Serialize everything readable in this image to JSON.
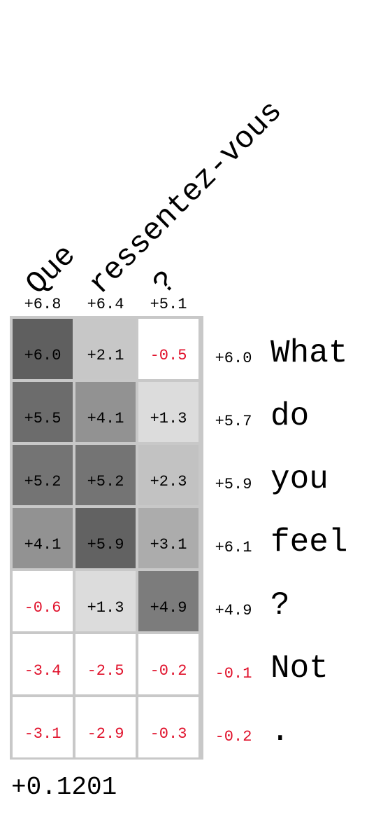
{
  "chart_data": {
    "type": "heatmap",
    "columns": [
      "Que",
      "ressentez-vous",
      "?"
    ],
    "column_totals": [
      "+6.8",
      "+6.4",
      "+5.1"
    ],
    "rows": [
      "What",
      "do",
      "you",
      "feel",
      "?",
      "Not",
      "."
    ],
    "row_totals": [
      "+6.0",
      "+5.7",
      "+5.9",
      "+6.1",
      "+4.9",
      "-0.1",
      "-0.2"
    ],
    "values": [
      [
        6.0,
        2.1,
        -0.5
      ],
      [
        5.5,
        4.1,
        1.3
      ],
      [
        5.2,
        5.2,
        2.3
      ],
      [
        4.1,
        5.9,
        3.1
      ],
      [
        -0.6,
        1.3,
        4.9
      ],
      [
        -3.4,
        -2.5,
        -0.2
      ],
      [
        -3.1,
        -2.9,
        -0.3
      ]
    ],
    "labels": [
      [
        "+6.0",
        "+2.1",
        "-0.5"
      ],
      [
        "+5.5",
        "+4.1",
        "+1.3"
      ],
      [
        "+5.2",
        "+5.2",
        "+2.3"
      ],
      [
        "+4.1",
        "+5.9",
        "+3.1"
      ],
      [
        "-0.6",
        "+1.3",
        "+4.9"
      ],
      [
        "-3.4",
        "-2.5",
        "-0.2"
      ],
      [
        "-3.1",
        "-2.9",
        "-0.3"
      ]
    ],
    "score": "+0.1201",
    "colors": {
      "positive_text": "#000000",
      "negative_text": "#e0102a",
      "frame": "#c8c8c8",
      "max_shade": "#5f5f5f"
    }
  }
}
